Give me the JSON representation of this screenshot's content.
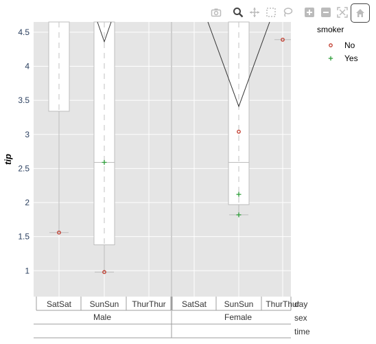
{
  "toolbar": {
    "buttons": [
      {
        "name": "camera-icon",
        "label": "Download plot as a png"
      },
      {
        "name": "zoom-icon",
        "label": "Zoom"
      },
      {
        "name": "pan-icon",
        "label": "Pan"
      },
      {
        "name": "box-select-icon",
        "label": "Box Select"
      },
      {
        "name": "lasso-select-icon",
        "label": "Lasso Select"
      },
      {
        "name": "zoom-in-icon",
        "label": "Zoom in"
      },
      {
        "name": "zoom-out-icon",
        "label": "Zoom out"
      },
      {
        "name": "autoscale-icon",
        "label": "Autoscale"
      },
      {
        "name": "home-icon",
        "label": "Reset axes"
      }
    ]
  },
  "legend": {
    "title": "smoker",
    "items": [
      {
        "label": "No",
        "symbol": "circle-open",
        "color": "#c0392b"
      },
      {
        "label": "Yes",
        "symbol": "cross",
        "color": "#2e9e3a"
      }
    ]
  },
  "colors": {
    "panel_bg": "#e5e5e5",
    "grid": "#ffffff",
    "box_fill": "#ffffff",
    "whisker": "#bdbdbd",
    "strip_line": "#9e9e9e"
  },
  "chart_data": {
    "type": "box",
    "ylabel": "tip",
    "ylim": [
      0.62,
      4.65
    ],
    "yticks": [
      1,
      1.5,
      2,
      2.5,
      3,
      3.5,
      4,
      4.5
    ],
    "facet_row_labels": [
      "day",
      "sex",
      "time"
    ],
    "facet_sex": [
      "Male",
      "Female"
    ],
    "facet_day_labels": [
      "SatSat",
      "SunSun",
      "ThurThur"
    ],
    "groups": [
      {
        "sex": "Male",
        "day": "SatSat",
        "box": {
          "q1": 3.34,
          "q3": 4.65,
          "whisker_low": 1.56
        },
        "points": [
          {
            "y": 1.56,
            "smoker": "No"
          }
        ]
      },
      {
        "sex": "Male",
        "day": "SunSun",
        "box": {
          "q1": 1.38,
          "median": 2.59,
          "q3": 4.65,
          "whisker_low": 0.98
        },
        "trend_dip": 4.36,
        "points": [
          {
            "y": 0.98,
            "smoker": "No"
          },
          {
            "y": 2.59,
            "smoker": "Yes"
          }
        ]
      },
      {
        "sex": "Male",
        "day": "ThurThur",
        "points": []
      },
      {
        "sex": "Female",
        "day": "SatSat",
        "points": []
      },
      {
        "sex": "Female",
        "day": "SunSun",
        "box": {
          "q1": 1.97,
          "median": 2.59,
          "q3": 4.65,
          "whisker_low": 1.82
        },
        "trend_dip": 3.41,
        "points": [
          {
            "y": 3.04,
            "smoker": "No"
          },
          {
            "y": 2.12,
            "smoker": "Yes"
          },
          {
            "y": 1.82,
            "smoker": "Yes"
          }
        ]
      },
      {
        "sex": "Female",
        "day": "ThurThur",
        "points": [
          {
            "y": 4.39,
            "smoker": "No"
          }
        ]
      }
    ]
  }
}
